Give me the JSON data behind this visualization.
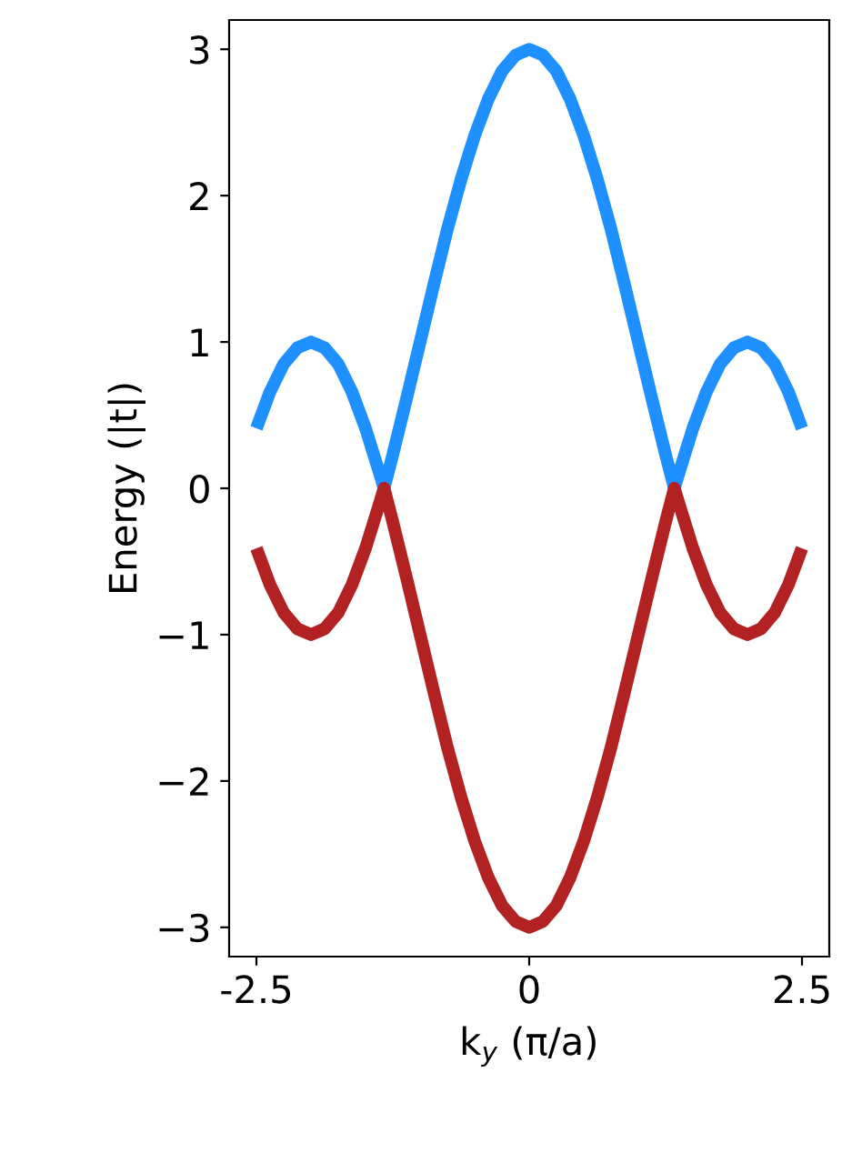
{
  "chart_data": {
    "type": "line",
    "xlabel": "k$_{y}$ (π/a)",
    "ylabel": "Energy (|t|)",
    "x": [
      -2.5,
      -2.375,
      -2.25,
      -2.125,
      -2.0,
      -1.875,
      -1.75,
      -1.625,
      -1.5,
      -1.375,
      -1.33,
      -1.25,
      -1.125,
      -1.0,
      -0.875,
      -0.75,
      -0.625,
      -0.5,
      -0.375,
      -0.25,
      -0.125,
      0,
      0.125,
      0.25,
      0.375,
      0.5,
      0.625,
      0.75,
      0.875,
      1.0,
      1.125,
      1.25,
      1.33,
      1.375,
      1.5,
      1.625,
      1.75,
      1.875,
      2.0,
      2.125,
      2.25,
      2.375,
      2.5
    ],
    "series": [
      {
        "color": "#1e90ff",
        "values": [
          0.41,
          0.66,
          0.85,
          0.96,
          1,
          0.96,
          0.85,
          0.66,
          0.41,
          0.11,
          0,
          0.23,
          0.61,
          1,
          1.39,
          1.77,
          2.11,
          2.41,
          2.66,
          2.85,
          2.96,
          3,
          2.96,
          2.85,
          2.66,
          2.41,
          2.11,
          1.77,
          1.39,
          1,
          0.61,
          0.23,
          0,
          0.11,
          0.41,
          0.66,
          0.85,
          0.96,
          1,
          0.96,
          0.85,
          0.66,
          0.41
        ]
      },
      {
        "color": "#b22222",
        "values": [
          -0.41,
          -0.66,
          -0.85,
          -0.96,
          -1,
          -0.96,
          -0.85,
          -0.66,
          -0.41,
          -0.11,
          0,
          -0.23,
          -0.61,
          -1,
          -1.39,
          -1.77,
          -2.11,
          -2.41,
          -2.66,
          -2.85,
          -2.96,
          -3,
          -2.96,
          -2.85,
          -2.66,
          -2.41,
          -2.11,
          -1.77,
          -1.39,
          -1,
          -0.61,
          -0.23,
          0,
          -0.11,
          -0.41,
          -0.66,
          -0.85,
          -0.96,
          -1,
          -0.96,
          -0.85,
          -0.66,
          -0.41
        ]
      }
    ],
    "xlim": [
      -2.75,
      2.75
    ],
    "xticks": [
      -2.5,
      0,
      2.5
    ],
    "ylim": [
      -3.2,
      3.2
    ],
    "yticks": [
      {
        "value": -3,
        "label": "−3"
      },
      {
        "value": -2,
        "label": "−2"
      },
      {
        "value": -1,
        "label": "−1"
      },
      0,
      1,
      2,
      3
    ],
    "grid": false,
    "legend": false,
    "marker": "none",
    "line_style": "solid"
  }
}
